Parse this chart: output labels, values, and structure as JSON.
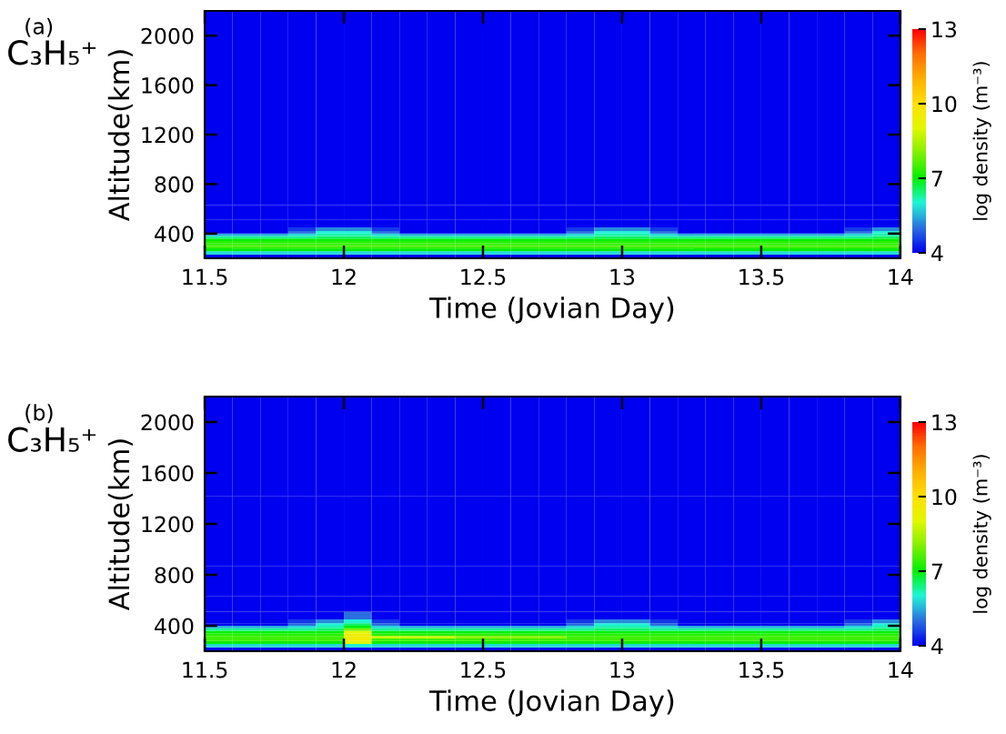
{
  "chart_data": [
    {
      "type": "heatmap",
      "annotations": [
        "(a)",
        "C₃H₅⁺"
      ],
      "xlabel": "Time (Jovian Day)",
      "ylabel": "Altitude(km)",
      "clabel": "log density (m⁻³)",
      "xlim": [
        11.5,
        14
      ],
      "xticks": [
        11.5,
        12,
        12.5,
        13,
        13.5,
        14
      ],
      "ylim": [
        200,
        2200
      ],
      "yticks": [
        400,
        800,
        1200,
        1600,
        2000
      ],
      "clim": [
        4,
        13
      ],
      "cticks": [
        4,
        7,
        10,
        13
      ],
      "colors": [
        "#0000f0",
        "#2a70e0",
        "#20f5d5",
        "#00f000",
        "#80f000",
        "#e0f800",
        "#ffe000",
        "#ffb000",
        "#ff7000",
        "#ff0000"
      ],
      "x": [
        11.55,
        11.65,
        11.75,
        11.85,
        11.95,
        12.05,
        12.15,
        12.25,
        12.35,
        12.45,
        12.55,
        12.65,
        12.75,
        12.85,
        12.95,
        13.05,
        13.15,
        13.25,
        13.35,
        13.45,
        13.55,
        13.65,
        13.75,
        13.85,
        13.95
      ],
      "y": [
        1810,
        1030,
        710,
        550,
        470,
        430,
        410,
        390,
        370,
        350,
        330,
        310,
        290,
        270,
        245,
        215
      ],
      "cells": [
        [
          4,
          4,
          4,
          4,
          4,
          4,
          4,
          4,
          4,
          4,
          4,
          4,
          4,
          4,
          4,
          4,
          4,
          4,
          4,
          4,
          4,
          4,
          4,
          4,
          4
        ],
        [
          4,
          4,
          4,
          4,
          4,
          4,
          4,
          4,
          4,
          4,
          4,
          4,
          4,
          4,
          4,
          4,
          4,
          4,
          4,
          4,
          4,
          4,
          4,
          4,
          4
        ],
        [
          4,
          4,
          4,
          4,
          4,
          4,
          4,
          4,
          4,
          4,
          4,
          4,
          4,
          4,
          4,
          4,
          4,
          4,
          4,
          4,
          4,
          4,
          4,
          4,
          4
        ],
        [
          4,
          4,
          4,
          4,
          4,
          4,
          4,
          4,
          4,
          4,
          4,
          4,
          4,
          4,
          4,
          4,
          4,
          4,
          4,
          4,
          4,
          4,
          4,
          4,
          4
        ],
        [
          4,
          4,
          4,
          4,
          4,
          4,
          4,
          4,
          4,
          4,
          4,
          4,
          4,
          4,
          4,
          4,
          4,
          4,
          4,
          4,
          4,
          4,
          4,
          4,
          4
        ],
        [
          4,
          4,
          4,
          4.5,
          5.2,
          5.2,
          4.5,
          4,
          4,
          4,
          4,
          4,
          4,
          4.5,
          5.2,
          5.2,
          4.5,
          4,
          4,
          4,
          4,
          4,
          4,
          4.5,
          5.2
        ],
        [
          4,
          4,
          4,
          5,
          6,
          6,
          5,
          4,
          4,
          4,
          4,
          4,
          4,
          5,
          6,
          6,
          5,
          4,
          4,
          4,
          4,
          4,
          4,
          5,
          6
        ],
        [
          5.5,
          5.5,
          5.5,
          5.8,
          6.2,
          6.2,
          5.8,
          5.5,
          5.5,
          5.5,
          5.5,
          5.5,
          5.5,
          5.8,
          6.2,
          6.2,
          5.8,
          5.5,
          5.5,
          5.5,
          5.5,
          5.5,
          5.5,
          5.8,
          6.2
        ],
        [
          6.3,
          6.3,
          6.3,
          6.3,
          6.5,
          6.5,
          6.3,
          6.3,
          6.3,
          6.3,
          6.3,
          6.3,
          6.3,
          6.3,
          6.5,
          6.5,
          6.3,
          6.3,
          6.3,
          6.3,
          6.3,
          6.3,
          6.3,
          6.3,
          6.5
        ],
        [
          7,
          7,
          7,
          7,
          7,
          7,
          7,
          7,
          7,
          7,
          7,
          7,
          7,
          7,
          7,
          7,
          7,
          7,
          7,
          7,
          7,
          7,
          7,
          7,
          7
        ],
        [
          7.3,
          7.3,
          7.3,
          7.3,
          7.3,
          7.3,
          7.3,
          7.3,
          7.3,
          7.3,
          7.3,
          7.3,
          7.3,
          7.3,
          7.3,
          7.3,
          7.3,
          7.3,
          7.3,
          7.3,
          7.3,
          7.3,
          7.3,
          7.3,
          7.3
        ],
        [
          7.5,
          7.5,
          7.5,
          7.5,
          7.5,
          7.5,
          7.5,
          7.5,
          7.5,
          7.5,
          7.5,
          7.5,
          7.5,
          7.5,
          7.5,
          7.5,
          7.5,
          7.5,
          7.5,
          7.5,
          7.5,
          7.5,
          7.5,
          7.5,
          7.5
        ],
        [
          7.5,
          7.5,
          7.5,
          7.5,
          7.5,
          7.5,
          7.5,
          7.5,
          7.5,
          7.5,
          7.5,
          7.5,
          7.5,
          7.5,
          7.5,
          7.5,
          7.5,
          7.5,
          7.5,
          7.5,
          7.5,
          7.5,
          7.5,
          7.5,
          7.5
        ],
        [
          7,
          7,
          7,
          7,
          7,
          7,
          7,
          7,
          7,
          7,
          7,
          7,
          7,
          7,
          7,
          7,
          7,
          7,
          7,
          7,
          7,
          7,
          7,
          7,
          7
        ],
        [
          5.8,
          5.8,
          5.8,
          5.8,
          5.8,
          5.8,
          5.8,
          5.8,
          5.8,
          5.8,
          5.8,
          5.8,
          5.8,
          5.8,
          5.8,
          5.8,
          5.8,
          5.8,
          5.8,
          5.8,
          5.8,
          5.8,
          5.8,
          5.8,
          5.8
        ],
        [
          4,
          4,
          4,
          4,
          4,
          4,
          4,
          4,
          4,
          4,
          4,
          4,
          4,
          4,
          4,
          4,
          4,
          4,
          4,
          4,
          4,
          4,
          4,
          4,
          4
        ]
      ]
    },
    {
      "type": "heatmap",
      "annotations": [
        "(b)",
        "C₃H₅⁺"
      ],
      "xlabel": "Time (Jovian Day)",
      "ylabel": "Altitude(km)",
      "clabel": "log density (m⁻³)",
      "xlim": [
        11.5,
        14
      ],
      "xticks": [
        11.5,
        12,
        12.5,
        13,
        13.5,
        14
      ],
      "ylim": [
        200,
        2200
      ],
      "yticks": [
        400,
        800,
        1200,
        1600,
        2000
      ],
      "clim": [
        4,
        13
      ],
      "cticks": [
        4,
        7,
        10,
        13
      ],
      "colors": [
        "#0000f0",
        "#2a70e0",
        "#20f5d5",
        "#00f000",
        "#80f000",
        "#e0f800",
        "#ffe000",
        "#ffb000",
        "#ff7000",
        "#ff0000"
      ],
      "x": [
        11.55,
        11.65,
        11.75,
        11.85,
        11.95,
        12.05,
        12.15,
        12.25,
        12.35,
        12.45,
        12.55,
        12.65,
        12.75,
        12.85,
        12.95,
        13.05,
        13.15,
        13.25,
        13.35,
        13.45,
        13.55,
        13.65,
        13.75,
        13.85,
        13.95
      ],
      "y": [
        1810,
        1030,
        710,
        550,
        470,
        430,
        410,
        390,
        370,
        350,
        330,
        310,
        290,
        270,
        245,
        215
      ],
      "cells": [
        [
          4,
          4,
          4,
          4,
          4,
          4,
          4,
          4,
          4,
          4,
          4,
          4,
          4,
          4,
          4,
          4,
          4,
          4,
          4,
          4,
          4,
          4,
          4,
          4,
          4
        ],
        [
          4,
          4,
          4,
          4,
          4,
          4,
          4,
          4,
          4,
          4,
          4,
          4,
          4,
          4,
          4,
          4,
          4,
          4,
          4,
          4,
          4,
          4,
          4,
          4,
          4
        ],
        [
          4,
          4,
          4,
          4,
          4,
          4,
          4,
          4,
          4,
          4,
          4,
          4,
          4,
          4,
          4,
          4,
          4,
          4,
          4,
          4,
          4,
          4,
          4,
          4,
          4
        ],
        [
          4,
          4,
          4,
          4,
          4,
          4,
          4,
          4,
          4,
          4,
          4,
          4,
          4,
          4,
          4,
          4,
          4,
          4,
          4,
          4,
          4,
          4,
          4,
          4,
          4
        ],
        [
          4,
          4,
          4,
          4,
          4,
          5,
          4,
          4,
          4,
          4,
          4,
          4,
          4,
          4,
          4,
          4,
          4,
          4,
          4,
          4,
          4,
          4,
          4,
          4,
          4
        ],
        [
          4,
          4,
          4,
          4.5,
          5.2,
          6,
          4.5,
          4,
          4,
          4,
          4,
          4,
          4,
          4.5,
          5.2,
          5.2,
          4.5,
          4,
          4,
          4,
          4,
          4,
          4,
          4.5,
          5.2
        ],
        [
          4,
          4,
          4,
          5,
          6,
          6.5,
          5,
          4,
          4,
          4,
          4,
          4,
          4,
          5,
          6,
          6,
          5,
          4,
          4,
          4,
          4,
          4,
          4,
          5,
          6
        ],
        [
          5.5,
          5.5,
          5.5,
          5.8,
          6.2,
          7,
          5.8,
          5.5,
          5.5,
          5.5,
          5.5,
          5.5,
          5.5,
          5.8,
          6.2,
          6.2,
          5.8,
          5.5,
          5.5,
          5.5,
          5.5,
          5.5,
          5.5,
          5.8,
          6.2
        ],
        [
          6.3,
          6.3,
          6.3,
          6.3,
          6.5,
          8,
          6.3,
          6.3,
          6.3,
          6.3,
          6.3,
          6.3,
          6.3,
          6.3,
          6.5,
          6.5,
          6.3,
          6.3,
          6.3,
          6.3,
          6.3,
          6.3,
          6.3,
          6.3,
          6.5
        ],
        [
          7,
          7,
          7,
          7,
          7,
          9,
          7,
          7,
          7,
          7,
          7,
          7,
          7,
          7,
          7,
          7,
          7,
          7,
          7,
          7,
          7,
          7,
          7,
          7,
          7
        ],
        [
          7.3,
          7.3,
          7.3,
          7.3,
          7.3,
          9.5,
          7.3,
          7.3,
          7.3,
          7.3,
          7.3,
          7.3,
          7.3,
          7.3,
          7.3,
          7.3,
          7.3,
          7.3,
          7.3,
          7.3,
          7.3,
          7.3,
          7.3,
          7.3,
          7.3
        ],
        [
          7.5,
          7.5,
          7.5,
          7.5,
          7.5,
          9.5,
          8.8,
          8.8,
          8.8,
          8.2,
          8.2,
          8.2,
          8.2,
          7.5,
          7.5,
          7.5,
          7.5,
          7.5,
          7.5,
          7.5,
          7.5,
          7.5,
          7.5,
          7.5,
          7.5
        ],
        [
          7.5,
          7.5,
          7.5,
          7.5,
          7.5,
          9.5,
          7.5,
          7.5,
          7.5,
          7.5,
          7.5,
          7.5,
          7.5,
          7.5,
          7.5,
          7.5,
          7.5,
          7.5,
          7.5,
          7.5,
          7.5,
          7.5,
          7.5,
          7.5,
          7.5
        ],
        [
          7,
          7,
          7,
          7,
          7,
          9,
          7,
          7,
          7,
          7,
          7,
          7,
          7,
          7,
          7,
          7,
          7,
          7,
          7,
          7,
          7,
          7,
          7,
          7,
          7
        ],
        [
          5.8,
          5.8,
          5.8,
          5.8,
          5.8,
          6,
          5.8,
          5.8,
          5.8,
          5.8,
          5.8,
          5.8,
          5.8,
          5.8,
          5.8,
          5.8,
          5.8,
          5.8,
          5.8,
          5.8,
          5.8,
          5.8,
          5.8,
          5.8,
          5.8
        ],
        [
          4,
          4,
          4,
          4,
          4,
          4,
          4,
          4,
          4,
          4,
          4,
          4,
          4,
          4,
          4,
          4,
          4,
          4,
          4,
          4,
          4,
          4,
          4,
          4,
          4
        ]
      ]
    }
  ]
}
